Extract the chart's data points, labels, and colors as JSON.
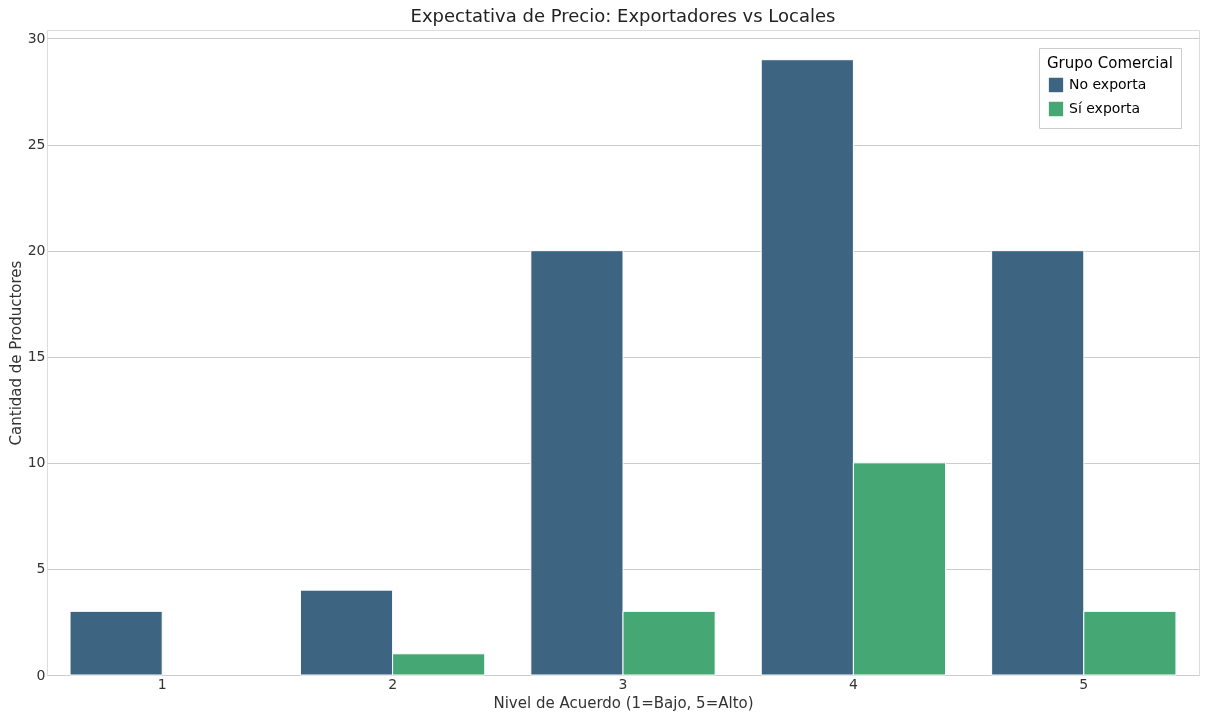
{
  "chart_data": {
    "type": "bar",
    "title": "Expectativa de Precio: Exportadores vs Locales",
    "xlabel": "Nivel de Acuerdo (1=Bajo, 5=Alto)",
    "ylabel": "Cantidad de Productores",
    "legend_title": "Grupo Comercial",
    "categories": [
      "1",
      "2",
      "3",
      "4",
      "5"
    ],
    "series": [
      {
        "name": "No exporta",
        "color": "#3d6582",
        "values": [
          3,
          4,
          20,
          29,
          20
        ]
      },
      {
        "name": "Sí exporta",
        "color": "#45a874",
        "values": [
          null,
          1,
          3,
          10,
          3
        ]
      }
    ],
    "ylim": [
      0,
      30.4
    ],
    "yticks": [
      0,
      5,
      10,
      15,
      20,
      25,
      30
    ],
    "grid": "y",
    "legend": "top right"
  }
}
